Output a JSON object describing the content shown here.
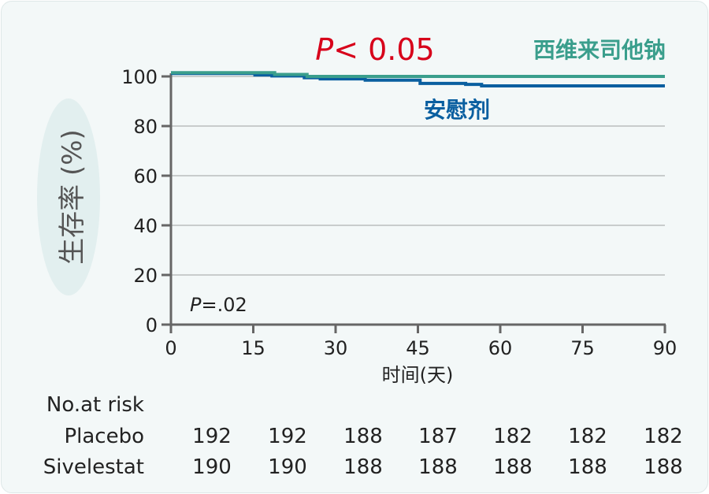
{
  "chart_data": {
    "type": "line",
    "subtype": "kaplan-meier step",
    "ylabel": "生存率 (%)",
    "xlabel": "时间(天)",
    "xlim": [
      0,
      90
    ],
    "ylim": [
      0,
      100
    ],
    "xticks": [
      0,
      15,
      30,
      45,
      60,
      75,
      90
    ],
    "yticks": [
      0,
      20,
      40,
      60,
      80,
      100
    ],
    "grid": "horizontal",
    "annotations": {
      "p_main": {
        "italic": "P",
        "rest": "< 0.05",
        "color": "#d7001a"
      },
      "p_inner": {
        "italic": "P",
        "rest": "=.02"
      }
    },
    "series": [
      {
        "name": "西维来司他钠",
        "color": "#3a9e8c",
        "steps": [
          [
            0,
            101.5
          ],
          [
            18.9,
            100.8
          ],
          [
            24.8,
            100
          ],
          [
            90,
            100
          ]
        ]
      },
      {
        "name": "安慰剂",
        "color": "#0a5fa0",
        "steps": [
          [
            0,
            101.2
          ],
          [
            15.3,
            100.6
          ],
          [
            18.4,
            100.2
          ],
          [
            24.3,
            99.5
          ],
          [
            27.2,
            99
          ],
          [
            35.4,
            98.5
          ],
          [
            45.4,
            97.2
          ],
          [
            53.7,
            96.8
          ],
          [
            56.6,
            96.2
          ],
          [
            90,
            96.2
          ]
        ]
      }
    ],
    "risk_table": {
      "title": "No.at risk",
      "rows": [
        {
          "label": "Placebo",
          "values": [
            "192",
            "192",
            "188",
            "187",
            "182",
            "182",
            "182"
          ]
        },
        {
          "label": "Sivelestat",
          "values": [
            "190",
            "190",
            "188",
            "188",
            "188",
            "188",
            "188"
          ]
        }
      ]
    }
  }
}
